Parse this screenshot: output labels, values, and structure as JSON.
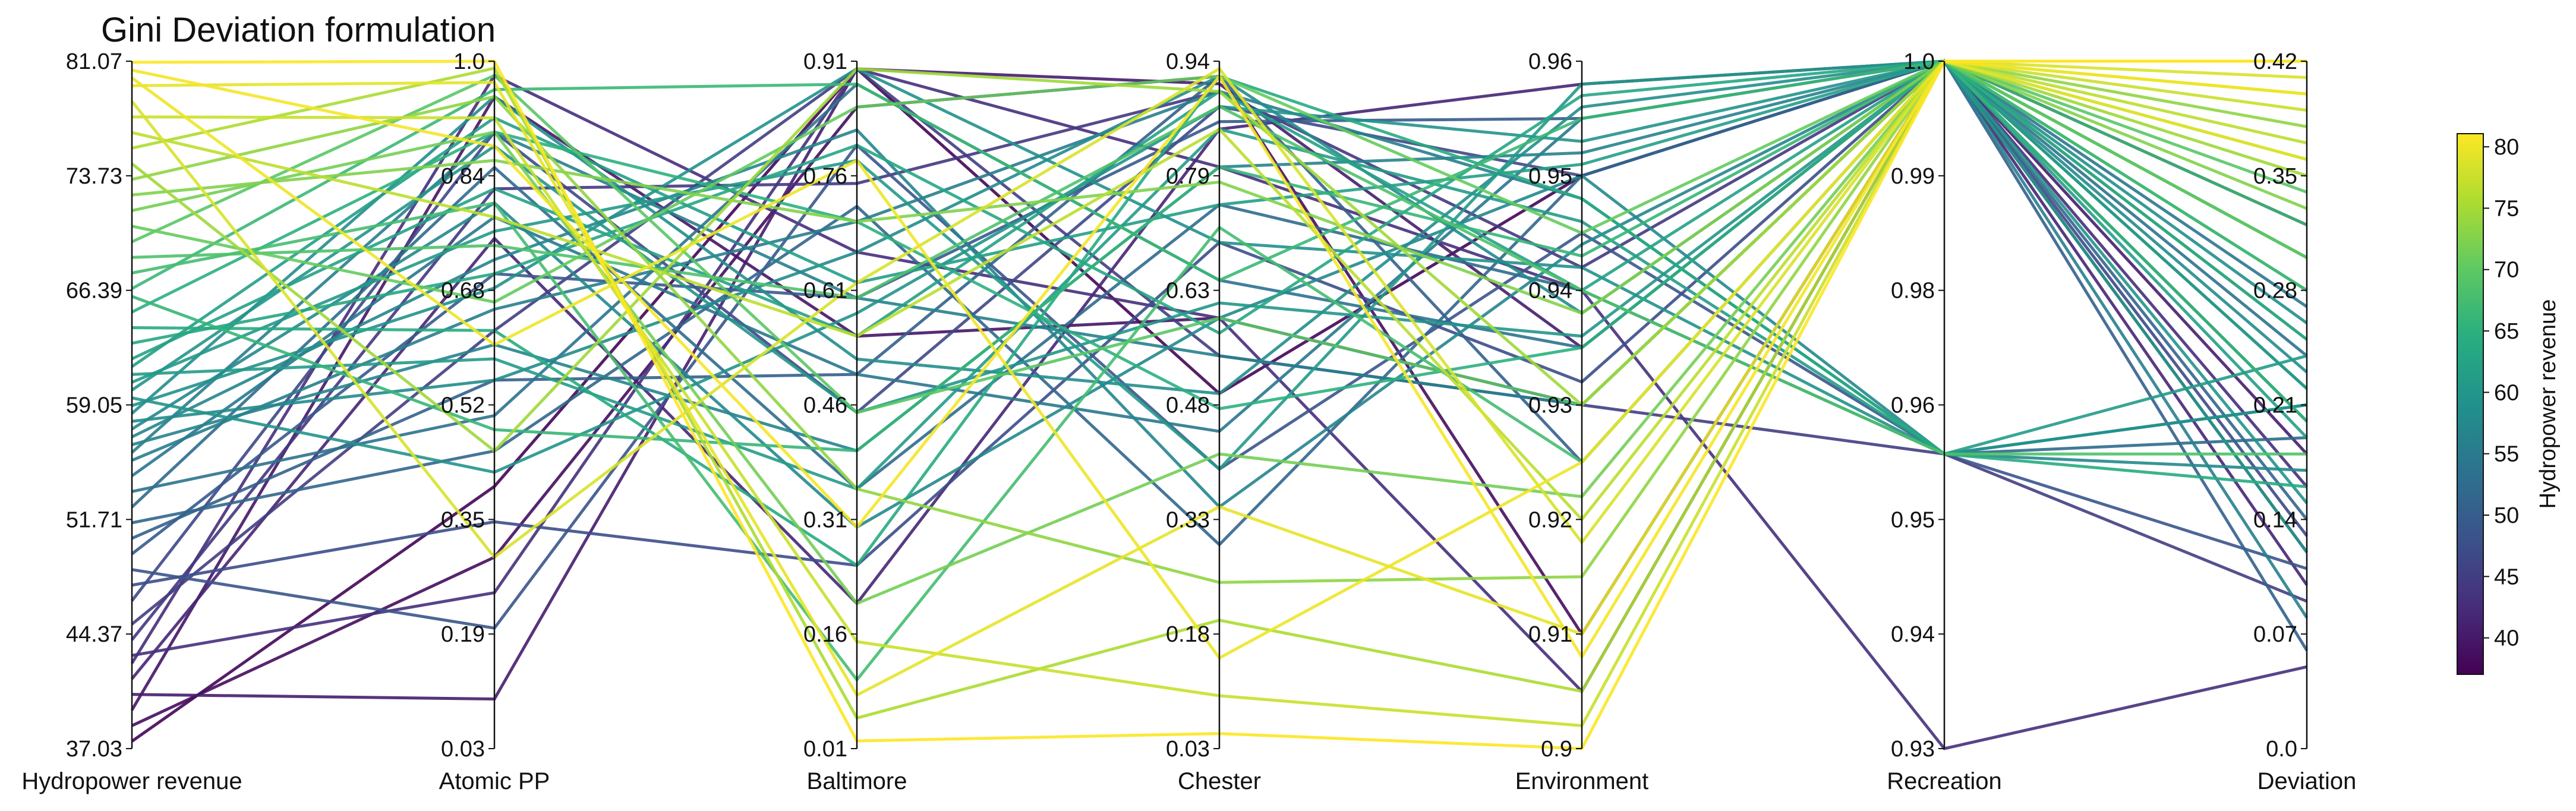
{
  "chart_data": {
    "type": "parallel-coordinates",
    "title": "Gini Deviation formulation",
    "colormap": "viridis",
    "grid": false,
    "axes": [
      {
        "label": "Hydropower revenue",
        "ticks": [
          "81.07",
          "73.73",
          "66.39",
          "59.05",
          "51.71",
          "44.37",
          "37.03"
        ],
        "range": [
          37.03,
          81.07
        ]
      },
      {
        "label": "Atomic PP",
        "ticks": [
          "1.0",
          "0.84",
          "0.68",
          "0.52",
          "0.35",
          "0.19",
          "0.03"
        ],
        "range": [
          0.03,
          1.0
        ]
      },
      {
        "label": "Baltimore",
        "ticks": [
          "0.91",
          "0.76",
          "0.61",
          "0.46",
          "0.31",
          "0.16",
          "0.01"
        ],
        "range": [
          0.01,
          0.91
        ]
      },
      {
        "label": "Chester",
        "ticks": [
          "0.94",
          "0.79",
          "0.63",
          "0.48",
          "0.33",
          "0.18",
          "0.03"
        ],
        "range": [
          0.03,
          0.94
        ]
      },
      {
        "label": "Environment",
        "ticks": [
          "0.96",
          "0.95",
          "0.94",
          "0.93",
          "0.92",
          "0.91",
          "0.9"
        ],
        "range": [
          0.9,
          0.96
        ]
      },
      {
        "label": "Recreation",
        "ticks": [
          "1.0",
          "0.99",
          "0.98",
          "0.96",
          "0.95",
          "0.94",
          "0.93"
        ],
        "range": [
          0.93,
          1.0
        ]
      },
      {
        "label": "Deviation",
        "ticks": [
          "0.42",
          "0.35",
          "0.28",
          "0.21",
          "0.14",
          "0.07",
          "0.0"
        ],
        "range": [
          0.0,
          0.42
        ]
      }
    ],
    "colorbar": {
      "label": "Hydropower revenue",
      "ticks": [
        "80",
        "75",
        "70",
        "65",
        "60",
        "55",
        "50",
        "45",
        "40"
      ],
      "range": [
        37.03,
        81.07
      ]
    },
    "series": [
      {
        "values": [
          37.5,
          0.4,
          0.9,
          0.5,
          0.95,
          1.0,
          0.32
        ]
      },
      {
        "values": [
          38.5,
          0.3,
          0.85,
          0.92,
          0.91,
          1.0,
          0.3
        ]
      },
      {
        "values": [
          39.5,
          0.95,
          0.55,
          0.6,
          0.93,
          1.0,
          0.12
        ]
      },
      {
        "values": [
          40.5,
          0.1,
          0.9,
          0.91,
          0.935,
          1.0,
          0.18
        ]
      },
      {
        "values": [
          41.5,
          0.75,
          0.2,
          0.85,
          0.958,
          1.0,
          0.1
        ]
      },
      {
        "values": [
          42.5,
          0.98,
          0.66,
          0.6,
          0.905,
          1.0,
          0.16
        ]
      },
      {
        "values": [
          43.0,
          0.25,
          0.9,
          0.8,
          0.94,
          0.93,
          0.05
        ]
      },
      {
        "values": [
          44.0,
          0.82,
          0.75,
          0.9,
          0.942,
          1.0,
          0.2
        ]
      },
      {
        "values": [
          45.0,
          0.62,
          0.9,
          0.55,
          0.93,
          0.96,
          0.09
        ]
      },
      {
        "values": [
          46.5,
          0.9,
          0.45,
          0.88,
          0.95,
          1.0,
          0.13
        ]
      },
      {
        "values": [
          47.5,
          0.35,
          0.25,
          0.7,
          0.932,
          1.0,
          0.22
        ]
      },
      {
        "values": [
          48.5,
          0.2,
          0.8,
          0.4,
          0.945,
          0.96,
          0.11
        ]
      },
      {
        "values": [
          49.5,
          0.7,
          0.6,
          0.86,
          0.955,
          1.0,
          0.25
        ]
      },
      {
        "values": [
          50.5,
          0.55,
          0.5,
          0.92,
          0.925,
          1.0,
          0.06
        ]
      },
      {
        "values": [
          51.5,
          0.45,
          0.72,
          0.3,
          0.95,
          1.0,
          0.14
        ]
      },
      {
        "values": [
          52.5,
          0.85,
          0.35,
          0.75,
          0.94,
          0.96,
          0.19
        ]
      },
      {
        "values": [
          53.5,
          0.5,
          0.88,
          0.65,
          0.935,
          1.0,
          0.24
        ]
      },
      {
        "values": [
          54.5,
          0.78,
          0.5,
          0.45,
          0.955,
          1.0,
          0.27
        ]
      },
      {
        "values": [
          55.5,
          0.65,
          0.7,
          0.9,
          0.948,
          0.96,
          0.21
        ]
      },
      {
        "values": [
          56.0,
          0.9,
          0.6,
          0.55,
          0.93,
          1.0,
          0.08
        ]
      },
      {
        "values": [
          56.5,
          0.6,
          0.4,
          0.8,
          0.952,
          1.0,
          0.3
        ]
      },
      {
        "values": [
          57.0,
          0.72,
          0.82,
          0.35,
          0.944,
          1.0,
          0.2
        ]
      },
      {
        "values": [
          57.5,
          0.8,
          0.3,
          0.6,
          0.95,
          0.96,
          0.17
        ]
      },
      {
        "values": [
          58.0,
          0.55,
          0.66,
          0.92,
          0.938,
          1.0,
          0.23
        ]
      },
      {
        "values": [
          58.5,
          0.95,
          0.52,
          0.5,
          0.956,
          1.0,
          0.26
        ]
      },
      {
        "values": [
          59.0,
          0.68,
          0.9,
          0.7,
          0.942,
          0.96,
          0.21
        ]
      },
      {
        "values": [
          59.5,
          0.42,
          0.58,
          0.88,
          0.953,
          1.0,
          0.15
        ]
      },
      {
        "values": [
          60.0,
          0.88,
          0.45,
          0.62,
          0.936,
          1.0,
          0.28
        ]
      },
      {
        "values": [
          60.5,
          0.76,
          0.78,
          0.4,
          0.958,
          1.0,
          0.12
        ]
      },
      {
        "values": [
          61.0,
          0.58,
          0.35,
          0.85,
          0.946,
          0.96,
          0.24
        ]
      },
      {
        "values": [
          61.5,
          0.92,
          0.62,
          0.75,
          0.951,
          1.0,
          0.19
        ]
      },
      {
        "values": [
          62.0,
          0.82,
          0.55,
          0.9,
          0.94,
          1.0,
          0.22
        ]
      },
      {
        "values": [
          63.0,
          0.7,
          0.8,
          0.58,
          0.957,
          1.0,
          0.3
        ]
      },
      {
        "values": [
          64.0,
          0.62,
          0.25,
          0.92,
          0.948,
          0.96,
          0.16
        ]
      },
      {
        "values": [
          65.0,
          0.9,
          0.7,
          0.48,
          0.935,
          1.0,
          0.25
        ]
      },
      {
        "values": [
          66.0,
          0.48,
          0.4,
          0.8,
          0.943,
          1.0,
          0.2
        ]
      },
      {
        "values": [
          66.5,
          0.96,
          0.88,
          0.65,
          0.955,
          1.0,
          0.32
        ]
      },
      {
        "values": [
          67.5,
          0.8,
          0.1,
          0.72,
          0.925,
          1.0,
          0.28
        ]
      },
      {
        "values": [
          68.5,
          0.74,
          0.6,
          0.88,
          0.94,
          0.96,
          0.18
        ]
      },
      {
        "values": [
          69.5,
          0.98,
          0.45,
          0.6,
          0.93,
          1.0,
          0.34
        ]
      },
      {
        "values": [
          70.5,
          0.66,
          0.85,
          0.92,
          0.945,
          1.0,
          0.3
        ]
      },
      {
        "values": [
          71.5,
          0.9,
          0.2,
          0.42,
          0.922,
          1.0,
          0.36
        ]
      },
      {
        "values": [
          72.5,
          0.86,
          0.7,
          0.78,
          0.938,
          1.0,
          0.33
        ]
      },
      {
        "values": [
          73.5,
          0.95,
          0.35,
          0.25,
          0.915,
          1.0,
          0.38
        ]
      },
      {
        "values": [
          74.5,
          0.45,
          0.9,
          0.9,
          0.93,
          1.0,
          0.35
        ]
      },
      {
        "values": [
          75.5,
          0.99,
          0.05,
          0.2,
          0.905,
          1.0,
          0.4
        ]
      },
      {
        "values": [
          76.5,
          0.78,
          0.55,
          0.85,
          0.92,
          1.0,
          0.37
        ]
      },
      {
        "values": [
          77.5,
          0.92,
          0.15,
          0.1,
          0.902,
          1.0,
          0.39
        ]
      },
      {
        "values": [
          78.5,
          0.3,
          0.62,
          0.93,
          0.918,
          1.0,
          0.41
        ]
      },
      {
        "values": [
          79.5,
          0.97,
          0.08,
          0.35,
          0.91,
          1.0,
          0.36
        ]
      },
      {
        "values": [
          80.0,
          0.6,
          0.78,
          0.15,
          0.925,
          1.0,
          0.42
        ]
      },
      {
        "values": [
          80.5,
          0.88,
          0.3,
          0.92,
          0.908,
          1.0,
          0.4
        ]
      },
      {
        "values": [
          81.0,
          1.0,
          0.02,
          0.05,
          0.9,
          1.0,
          0.42
        ]
      }
    ]
  }
}
